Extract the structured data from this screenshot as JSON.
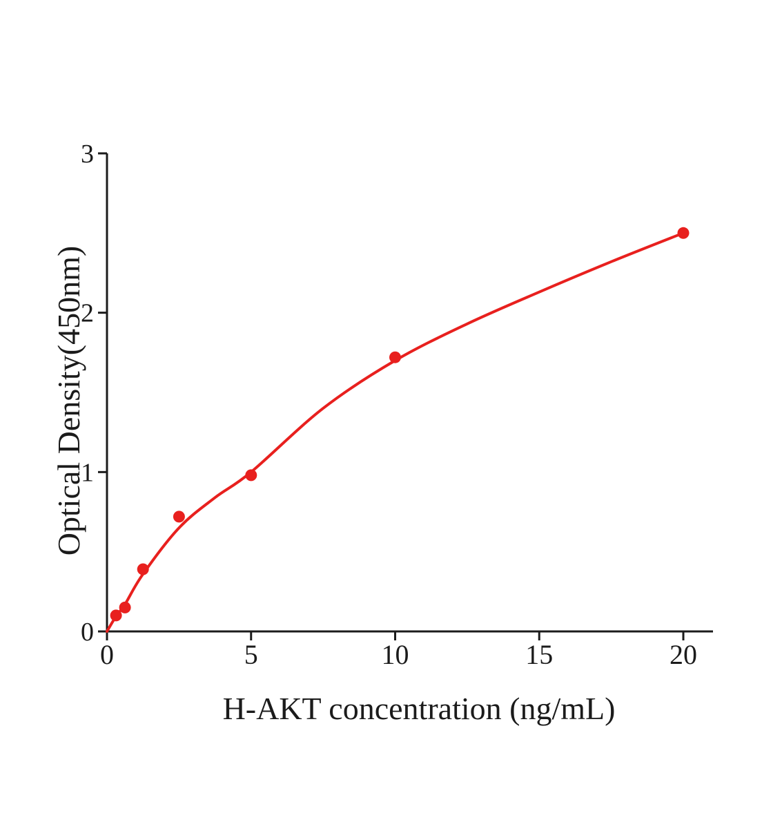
{
  "figure": {
    "background_color": "#ffffff",
    "axis_color": "#1b1b1b",
    "accent_color": "#e8201e"
  },
  "chart_data": {
    "type": "scatter",
    "title": "",
    "xlabel": "H-AKT concentration (ng/mL)",
    "ylabel": "Optical Density(450nm)",
    "xlim": [
      0,
      21
    ],
    "ylim": [
      0,
      3
    ],
    "x_ticks": [
      0,
      5,
      10,
      15,
      20
    ],
    "y_ticks": [
      0,
      1,
      2,
      3
    ],
    "grid": false,
    "legend_position": "none",
    "series": [
      {
        "name": "standard-points",
        "type": "scatter",
        "color": "#e8201e",
        "marker": "circle",
        "x": [
          0.313,
          0.625,
          1.25,
          2.5,
          5,
          10,
          20
        ],
        "y": [
          0.1,
          0.15,
          0.39,
          0.72,
          0.98,
          1.72,
          2.5
        ]
      },
      {
        "name": "fitted-curve",
        "type": "line",
        "color": "#e8201e",
        "x": [
          0,
          0.313,
          0.625,
          1.25,
          2.5,
          3.75,
          5,
          7.5,
          10,
          12.5,
          15,
          17.5,
          20
        ],
        "y": [
          0,
          0.095,
          0.17,
          0.36,
          0.65,
          0.84,
          1.0,
          1.4,
          1.7,
          1.93,
          2.13,
          2.32,
          2.5
        ]
      }
    ]
  }
}
